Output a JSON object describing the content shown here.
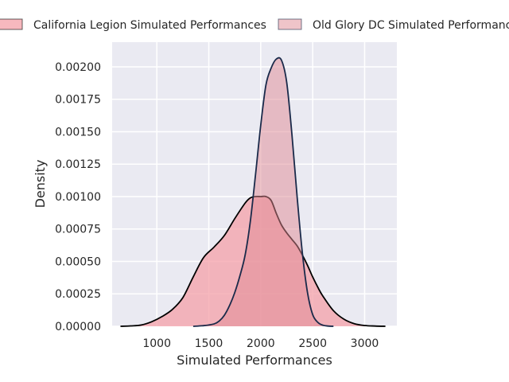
{
  "chart_data": {
    "type": "area",
    "title": "",
    "xlabel": "Simulated Performances",
    "ylabel": "Density",
    "xlim": [
      570,
      3310
    ],
    "ylim": [
      0,
      0.00219
    ],
    "xticks": [
      1000,
      1500,
      2000,
      2500,
      3000
    ],
    "xtick_labels": [
      "1000",
      "1500",
      "2000",
      "2500",
      "3000"
    ],
    "yticks": [
      0,
      0.00025,
      0.0005,
      0.00075,
      0.001,
      0.00125,
      0.0015,
      0.00175,
      0.002
    ],
    "ytick_labels": [
      "0.00000",
      "0.00025",
      "0.00050",
      "0.00075",
      "0.00100",
      "0.00125",
      "0.00150",
      "0.00175",
      "0.00200"
    ],
    "grid": true,
    "legend": "top",
    "series": [
      {
        "name": "California Legion Simulated Performances",
        "fill": "#f4a0a8",
        "edge": "#000000",
        "x": [
          650,
          750,
          850,
          950,
          1050,
          1150,
          1250,
          1350,
          1450,
          1550,
          1650,
          1750,
          1850,
          1900,
          1950,
          2000,
          2050,
          2100,
          2150,
          2200,
          2250,
          2300,
          2350,
          2400,
          2450,
          2500,
          2550,
          2600,
          2700,
          2800,
          2900,
          3000,
          3100,
          3200
        ],
        "y": [
          0.0,
          3e-06,
          1e-05,
          3.5e-05,
          7.5e-05,
          0.00013,
          0.00022,
          0.00038,
          0.00053,
          0.00061,
          0.0007,
          0.00083,
          0.00095,
          0.00099,
          0.001,
          0.001,
          0.001,
          0.00097,
          0.00087,
          0.00078,
          0.00072,
          0.00067,
          0.00062,
          0.00055,
          0.00047,
          0.00038,
          0.0003,
          0.00023,
          0.00012,
          5.5e-05,
          2e-05,
          6e-06,
          2e-06,
          0.0
        ]
      },
      {
        "name": "Old Glory DC Simulated Performances",
        "fill": "#e08a94",
        "edge": "#1a2a4a",
        "x": [
          1350,
          1450,
          1550,
          1600,
          1650,
          1700,
          1750,
          1800,
          1850,
          1900,
          1950,
          2000,
          2050,
          2100,
          2150,
          2200,
          2250,
          2300,
          2350,
          2400,
          2450,
          2500,
          2550,
          2600,
          2650,
          2700
        ],
        "y": [
          0.0,
          5e-06,
          1.8e-05,
          4e-05,
          8.5e-05,
          0.00016,
          0.00026,
          0.00039,
          0.00055,
          0.00081,
          0.00117,
          0.00155,
          0.00186,
          0.00199,
          0.00206,
          0.00205,
          0.00188,
          0.00148,
          0.001,
          0.00057,
          0.00026,
          9e-05,
          3e-05,
          8e-06,
          2e-06,
          0.0
        ]
      }
    ]
  }
}
